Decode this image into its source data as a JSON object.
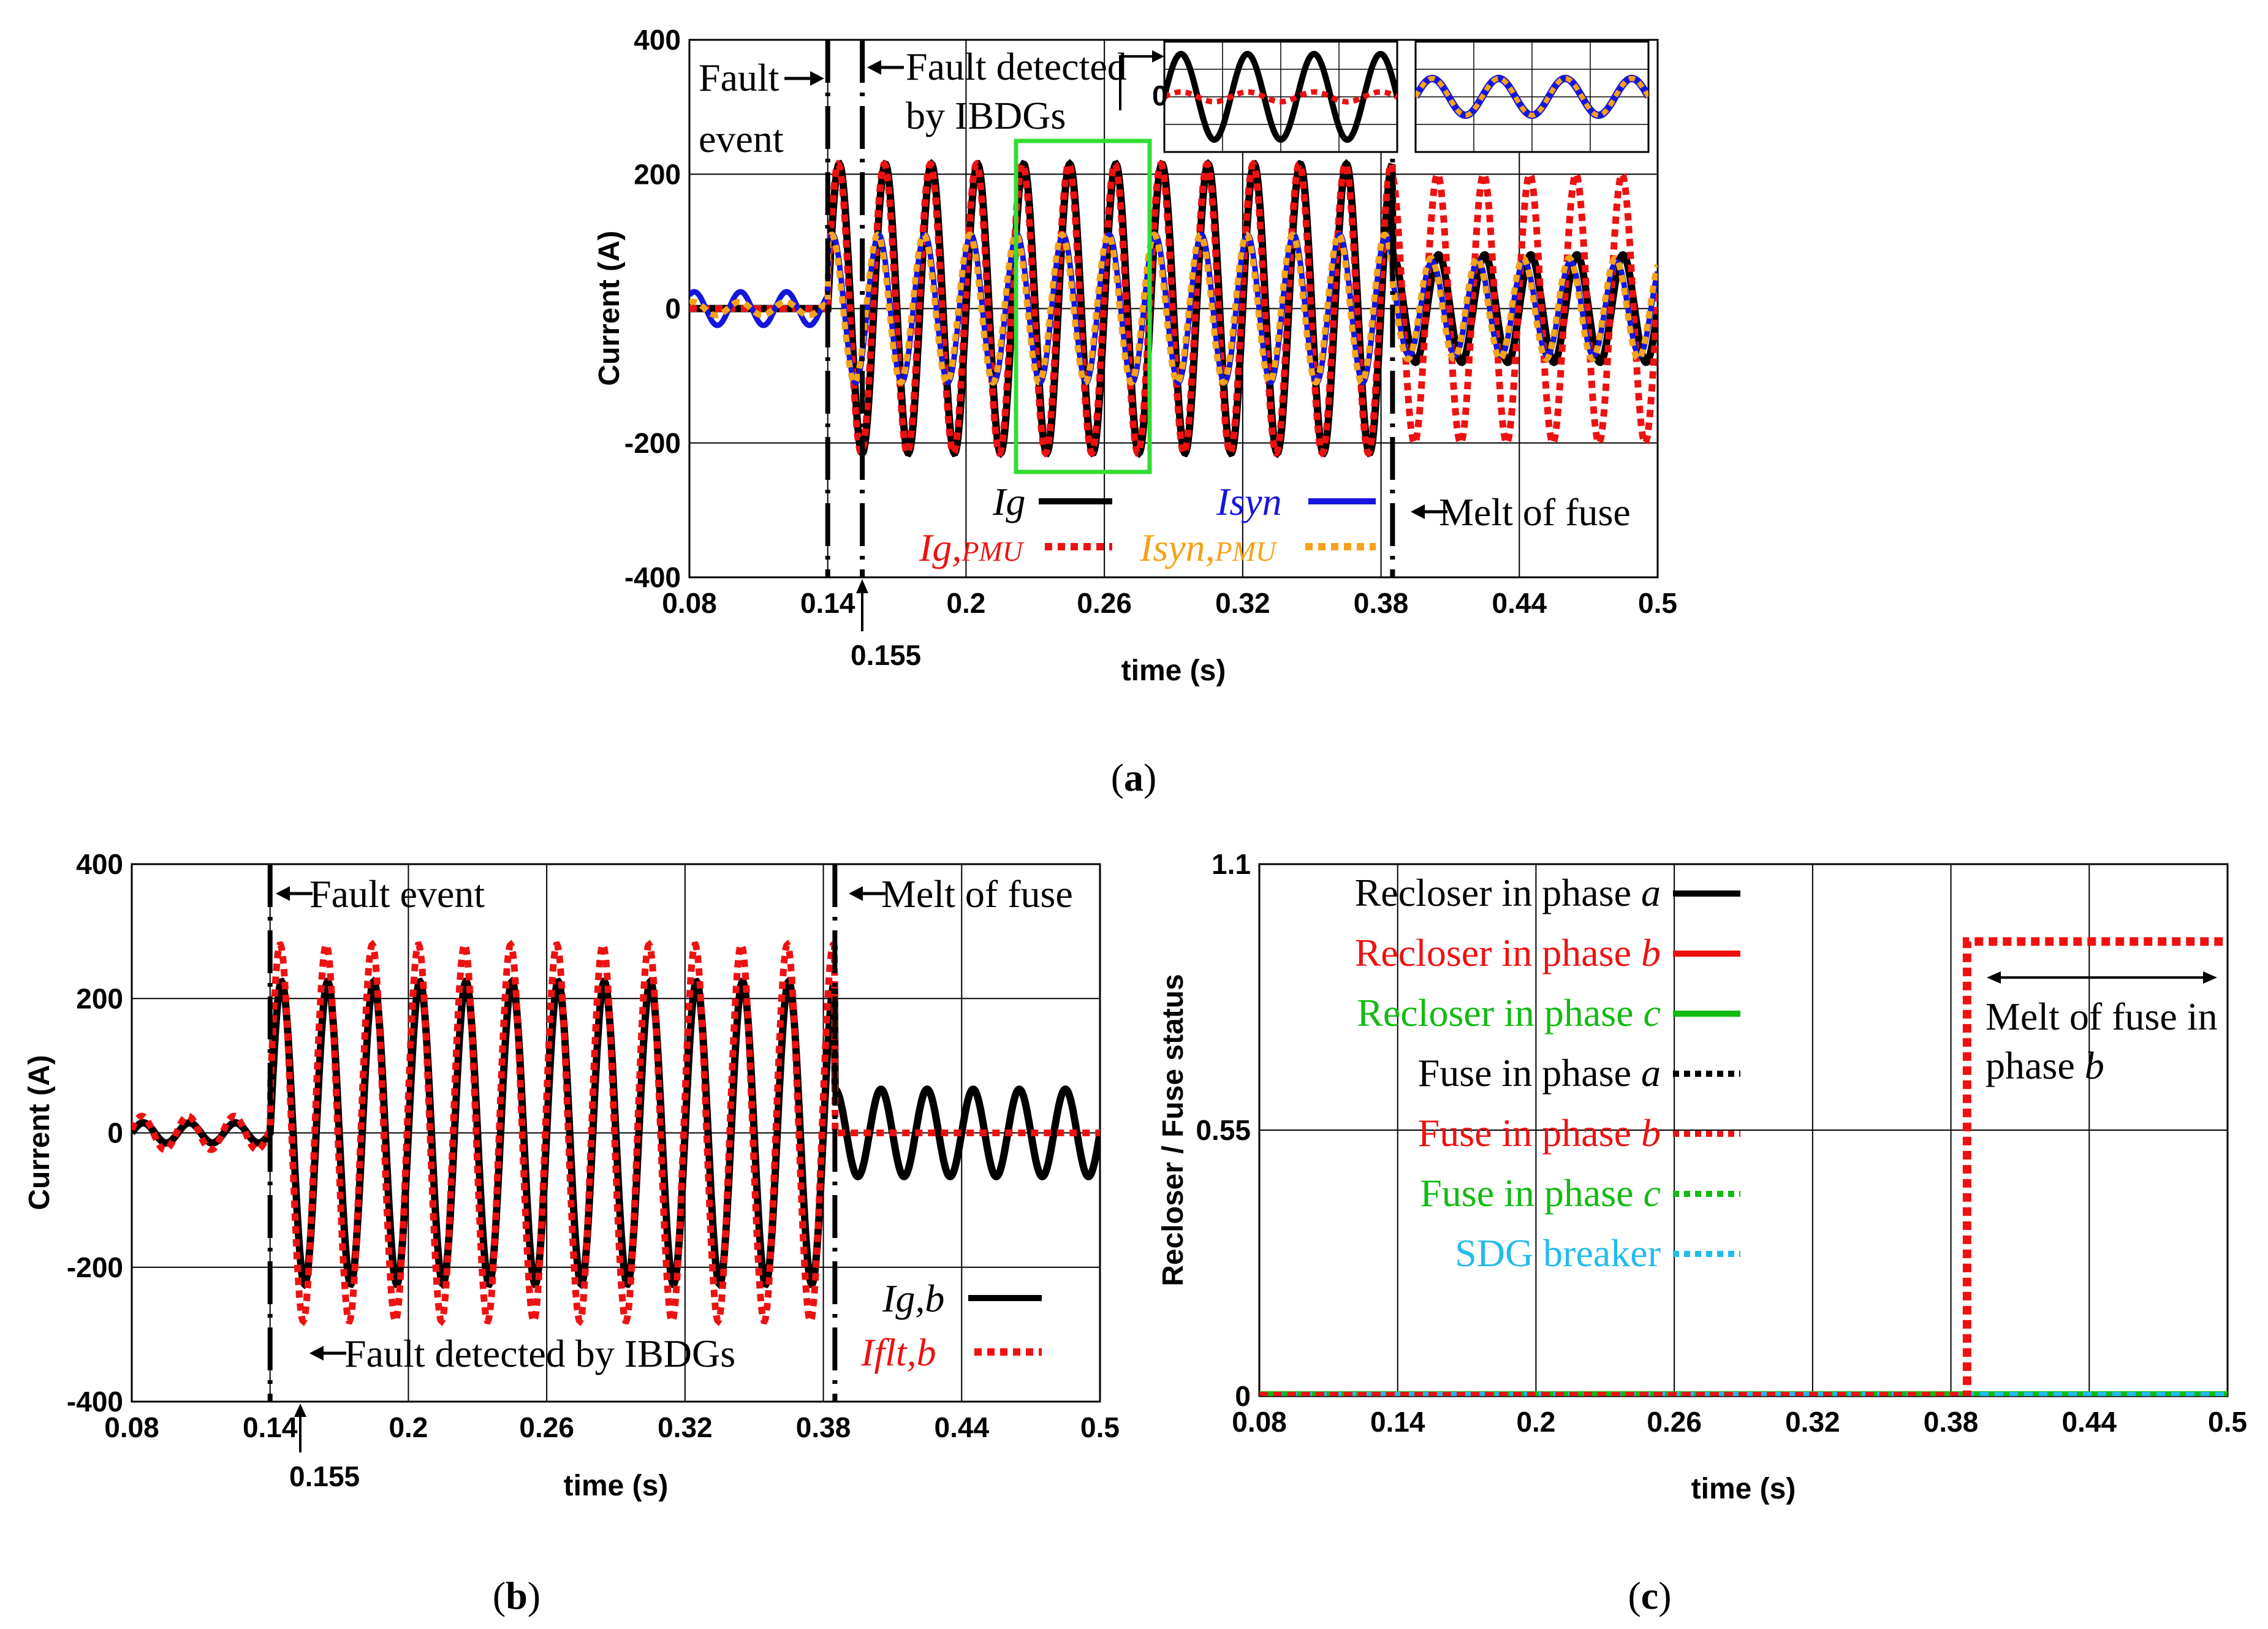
{
  "chart_data": [
    {
      "id": "a",
      "type": "line",
      "caption_letter": "a",
      "xlabel": "time (s)",
      "ylabel": "Current (A)",
      "xlim": [
        0.08,
        0.5
      ],
      "ylim": [
        -400,
        400
      ],
      "xticks": [
        "0.08",
        "0.14",
        "0.2",
        "0.26",
        "0.32",
        "0.38",
        "0.44",
        "0.5"
      ],
      "yticks": [
        "400",
        "200",
        "0",
        "-200",
        "-400"
      ],
      "extra_tick": "0.155",
      "annotations": {
        "fault_event_1": "Fault",
        "fault_event_2": "event",
        "fault_detected_1": "Fault detected",
        "fault_detected_2": "by IBDGs",
        "melt": "Melt of fuse",
        "inset_zero": "0"
      },
      "legend": {
        "ig": "Ig",
        "ig_pmu_main": "Ig,",
        "ig_pmu_sub": "PMU",
        "isyn": "Isyn",
        "isyn_pmu_main": "Isyn,",
        "isyn_pmu_sub": "PMU"
      },
      "series": [
        {
          "name": "Ig",
          "color": "#000000",
          "style": "solid",
          "pre_fault_A": 0,
          "fault_amp_A": 215,
          "post_melt_amp_A": 80
        },
        {
          "name": "Ig,PMU",
          "color": "#ee1111",
          "style": "dotted",
          "pre_fault_A": 0,
          "fault_amp_A": 215,
          "post_melt_amp_A": 200
        },
        {
          "name": "Isyn",
          "color": "#1515dd",
          "style": "solid",
          "pre_fault_A": 25,
          "fault_amp_A": 110,
          "post_melt_amp_A": 70
        },
        {
          "name": "Isyn,PMU",
          "color": "#f5a31a",
          "style": "dotted",
          "pre_fault_A": 10,
          "fault_amp_A": 110,
          "post_melt_amp_A": 75
        }
      ],
      "events_s": {
        "fault": 0.14,
        "detected": 0.155,
        "melt": 0.385
      },
      "frequency_hz": 50
    },
    {
      "id": "b",
      "type": "line",
      "caption_letter": "b",
      "xlabel": "time (s)",
      "ylabel": "Current (A)",
      "xlim": [
        0.08,
        0.5
      ],
      "ylim": [
        -400,
        400
      ],
      "xticks": [
        "0.08",
        "0.14",
        "0.2",
        "0.26",
        "0.32",
        "0.38",
        "0.44",
        "0.5"
      ],
      "yticks": [
        "400",
        "200",
        "0",
        "-200",
        "-400"
      ],
      "extra_tick": "0.155",
      "annotations": {
        "fault_event": "Fault event",
        "melt": "Melt of fuse",
        "fault_detected": "Fault detected by IBDGs"
      },
      "legend": {
        "ig_b": "Ig,b",
        "iflt_b": "Iflt,b"
      },
      "series": [
        {
          "name": "Ig,b",
          "color": "#000000",
          "style": "solid",
          "pre_fault_A": 15,
          "fault_amp_A": 225,
          "post_melt_amp_A": 65
        },
        {
          "name": "Iflt,b",
          "color": "#ee1111",
          "style": "dotted",
          "pre_fault_A": 25,
          "fault_amp_A": 280,
          "post_melt_amp_A": 0
        }
      ],
      "events_s": {
        "fault": 0.14,
        "detected": 0.155,
        "melt": 0.385
      },
      "frequency_hz": 50
    },
    {
      "id": "c",
      "type": "line",
      "caption_letter": "c",
      "xlabel": "time (s)",
      "ylabel": "Recloser / Fuse status",
      "xlim": [
        0.08,
        0.5
      ],
      "ylim": [
        0,
        1.1
      ],
      "xticks": [
        "0.08",
        "0.14",
        "0.2",
        "0.26",
        "0.32",
        "0.38",
        "0.44",
        "0.5"
      ],
      "yticks": [
        "1.1",
        "0.55",
        "0"
      ],
      "annotations": {
        "melt_1": "Melt of fuse in",
        "melt_2": "phase",
        "melt_phase": "b"
      },
      "legend": [
        {
          "text": "Recloser in phase ",
          "phase": "a",
          "color": "#000000",
          "style": "solid"
        },
        {
          "text": "Recloser in phase ",
          "phase": "b",
          "color": "#ee1111",
          "style": "solid"
        },
        {
          "text": "Recloser in phase ",
          "phase": "c",
          "color": "#11bb11",
          "style": "solid"
        },
        {
          "text": "Fuse in phase ",
          "phase": "a",
          "color": "#000000",
          "style": "dotted"
        },
        {
          "text": "Fuse in phase ",
          "phase": "b",
          "color": "#ee1111",
          "style": "dotted"
        },
        {
          "text": "Fuse in phase ",
          "phase": "c",
          "color": "#11bb11",
          "style": "dotted"
        },
        {
          "text": "SDG breaker",
          "phase": "",
          "color": "#22bbee",
          "style": "dotted"
        }
      ],
      "series": [
        {
          "name": "Fuse in phase b",
          "x": [
            0.08,
            0.387,
            0.387,
            0.5
          ],
          "y": [
            0,
            0,
            1,
            1
          ]
        },
        {
          "name": "others",
          "x": [
            0.08,
            0.5
          ],
          "y": [
            0,
            0
          ]
        }
      ]
    }
  ]
}
